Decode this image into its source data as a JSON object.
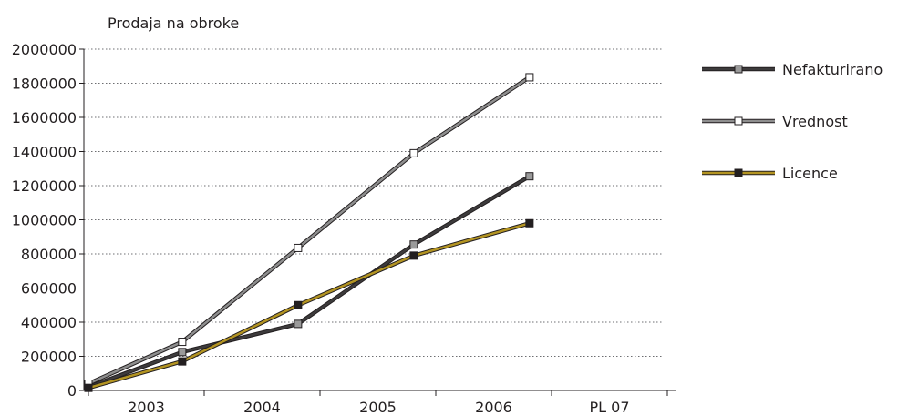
{
  "chart_data": {
    "type": "line",
    "title": "Prodaja na obroke",
    "categories": [
      "2003",
      "2004",
      "2005",
      "2006",
      "PL 07"
    ],
    "ylim": [
      0,
      2000000
    ],
    "y_ticks": [
      "2000000",
      "1800000",
      "1600000",
      "1400000",
      "1200000",
      "1000000",
      "800000",
      "600000",
      "400000",
      "200000",
      "0"
    ],
    "grid": "horizontal-dotted",
    "legend_position": "right",
    "series": [
      {
        "name": "Nefakturirano",
        "x": [
          0,
          0.81,
          1.81,
          2.81,
          3.81
        ],
        "values": [
          20000,
          225000,
          390000,
          855000,
          1255000
        ],
        "color": "#3d3b3c",
        "marker_fill": "#9a9a9a"
      },
      {
        "name": "Vrednost",
        "x": [
          0,
          0.81,
          1.81,
          2.81,
          3.81
        ],
        "values": [
          40000,
          285000,
          835000,
          1390000,
          1835000
        ],
        "color": "#8e8e8e",
        "marker_fill": "#ffffff"
      },
      {
        "name": "Licence",
        "x": [
          0,
          0.81,
          1.81,
          2.81,
          3.81
        ],
        "values": [
          15000,
          170000,
          500000,
          790000,
          980000
        ],
        "color": "#b39422",
        "marker_fill": "#231f20"
      }
    ]
  }
}
